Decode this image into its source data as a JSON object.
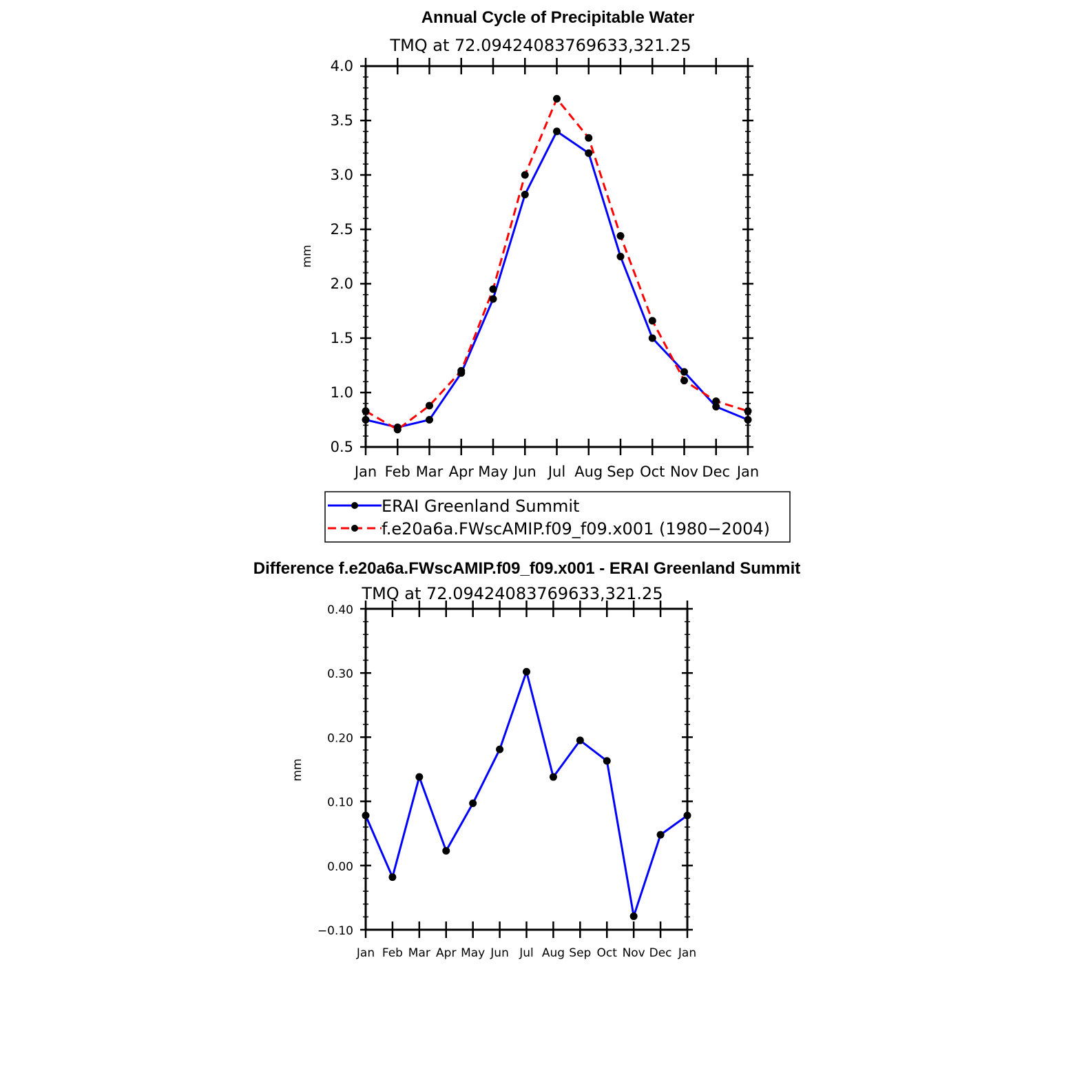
{
  "chart_data": [
    {
      "type": "line",
      "title": "Annual Cycle of Precipitable Water",
      "subtitle": "TMQ  at  72.09424083769633,321.25",
      "xlabel": "",
      "ylabel": "mm",
      "categories": [
        "Jan",
        "Feb",
        "Mar",
        "Apr",
        "May",
        "Jun",
        "Jul",
        "Aug",
        "Sep",
        "Oct",
        "Nov",
        "Dec",
        "Jan"
      ],
      "ylim": [
        0.5,
        4.0
      ],
      "yticks": [
        "0.5",
        "1.0",
        "1.5",
        "2.0",
        "2.5",
        "3.0",
        "3.5",
        "4.0"
      ],
      "series": [
        {
          "name": "ERAI Greenland Summit",
          "color": "#0000ff",
          "style": "solid",
          "values": [
            0.75,
            0.68,
            0.75,
            1.18,
            1.86,
            2.82,
            3.4,
            3.2,
            2.25,
            1.5,
            1.19,
            0.87,
            0.75
          ]
        },
        {
          "name": "f.e20a6a.FWscAMIP.f09_f09.x001 (1980−2004)",
          "color": "#ff0000",
          "style": "dashed",
          "values": [
            0.83,
            0.66,
            0.88,
            1.2,
            1.95,
            3.0,
            3.7,
            3.34,
            2.44,
            1.66,
            1.11,
            0.92,
            0.83
          ]
        }
      ],
      "legend": "bottom"
    },
    {
      "type": "line",
      "title": "Difference f.e20a6a.FWscAMIP.f09_f09.x001 - ERAI Greenland Summit",
      "subtitle": "TMQ  at  72.09424083769633,321.25",
      "xlabel": "",
      "ylabel": "mm",
      "categories": [
        "Jan",
        "Feb",
        "Mar",
        "Apr",
        "May",
        "Jun",
        "Jul",
        "Aug",
        "Sep",
        "Oct",
        "Nov",
        "Dec",
        "Jan"
      ],
      "ylim": [
        -0.1,
        0.4
      ],
      "yticks": [
        "−0.10",
        "0.00",
        "0.10",
        "0.20",
        "0.30",
        "0.40"
      ],
      "series": [
        {
          "name": "Difference",
          "color": "#0000ff",
          "style": "solid",
          "values": [
            0.078,
            -0.018,
            0.138,
            0.023,
            0.097,
            0.181,
            0.302,
            0.138,
            0.195,
            0.163,
            -0.079,
            0.048,
            0.078
          ]
        }
      ]
    }
  ]
}
